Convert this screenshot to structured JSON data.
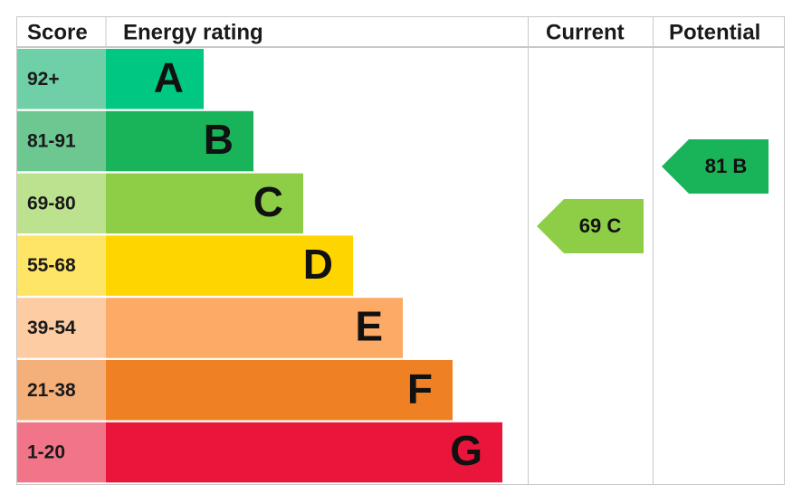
{
  "header": {
    "score": "Score",
    "rating": "Energy rating",
    "current": "Current",
    "potential": "Potential"
  },
  "bands": [
    {
      "score": "92+",
      "letter": "A",
      "color": "#00c781",
      "light": "#6fcfa6"
    },
    {
      "score": "81-91",
      "letter": "B",
      "color": "#19b459",
      "light": "#6cc890"
    },
    {
      "score": "69-80",
      "letter": "C",
      "color": "#8dce46",
      "light": "#bde28f"
    },
    {
      "score": "55-68",
      "letter": "D",
      "color": "#ffd500",
      "light": "#ffe566"
    },
    {
      "score": "39-54",
      "letter": "E",
      "color": "#fcaa65",
      "light": "#fdcca2"
    },
    {
      "score": "21-38",
      "letter": "F",
      "color": "#ef8023",
      "light": "#f5b07a"
    },
    {
      "score": "1-20",
      "letter": "G",
      "color": "#e9153b",
      "light": "#f27489"
    }
  ],
  "current": {
    "label": "69 C",
    "color": "#8dce46"
  },
  "potential": {
    "label": "81 B",
    "color": "#19b459"
  }
}
